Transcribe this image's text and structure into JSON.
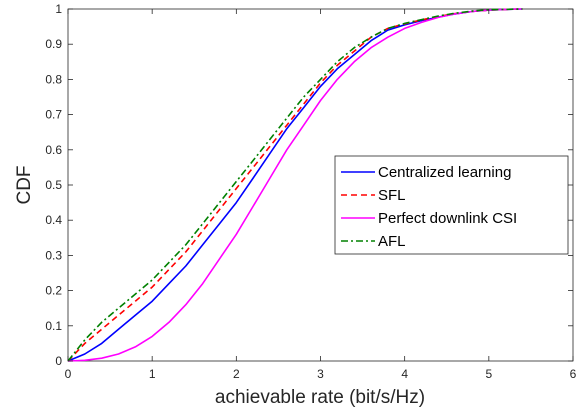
{
  "chart_data": {
    "type": "line",
    "title": "",
    "xlabel": "achievable rate (bit/s/Hz)",
    "ylabel": "CDF",
    "xlim": [
      0,
      6
    ],
    "ylim": [
      0,
      1
    ],
    "xticks": [
      "0",
      "1",
      "2",
      "3",
      "4",
      "5",
      "6"
    ],
    "yticks": [
      "0",
      "0.1",
      "0.2",
      "0.3",
      "0.4",
      "0.5",
      "0.6",
      "0.7",
      "0.8",
      "0.9",
      "1"
    ],
    "grid": false,
    "legend_position": "right",
    "series": [
      {
        "name": "Centralized learning",
        "color": "#0000ff",
        "style": "solid",
        "x": [
          0,
          0.2,
          0.4,
          0.6,
          0.8,
          1.0,
          1.2,
          1.4,
          1.6,
          1.8,
          2.0,
          2.2,
          2.4,
          2.6,
          2.8,
          3.0,
          3.2,
          3.4,
          3.6,
          3.8,
          4.0,
          4.2,
          4.4,
          4.6,
          4.8,
          5.0,
          5.2,
          5.4
        ],
        "y": [
          0,
          0.02,
          0.05,
          0.09,
          0.13,
          0.17,
          0.22,
          0.27,
          0.33,
          0.39,
          0.45,
          0.52,
          0.59,
          0.66,
          0.72,
          0.78,
          0.83,
          0.87,
          0.91,
          0.94,
          0.955,
          0.967,
          0.977,
          0.986,
          0.993,
          0.997,
          0.999,
          1.0
        ]
      },
      {
        "name": "SFL",
        "color": "#ff0000",
        "style": "dashed",
        "x": [
          0,
          0.2,
          0.4,
          0.6,
          0.8,
          1.0,
          1.2,
          1.4,
          1.6,
          1.8,
          2.0,
          2.2,
          2.4,
          2.6,
          2.8,
          3.0,
          3.2,
          3.4,
          3.6,
          3.8,
          4.0,
          4.2,
          4.4,
          4.6,
          4.8,
          5.0,
          5.2,
          5.4
        ],
        "y": [
          0,
          0.05,
          0.09,
          0.13,
          0.17,
          0.21,
          0.26,
          0.31,
          0.37,
          0.43,
          0.49,
          0.55,
          0.61,
          0.67,
          0.73,
          0.79,
          0.84,
          0.88,
          0.92,
          0.945,
          0.958,
          0.969,
          0.979,
          0.987,
          0.993,
          0.997,
          0.999,
          1.0
        ]
      },
      {
        "name": "Perfect downlink CSI",
        "color": "#ff00ff",
        "style": "solid",
        "x": [
          0,
          0.2,
          0.4,
          0.6,
          0.8,
          1.0,
          1.2,
          1.4,
          1.6,
          1.8,
          2.0,
          2.2,
          2.4,
          2.6,
          2.8,
          3.0,
          3.2,
          3.4,
          3.6,
          3.8,
          4.0,
          4.2,
          4.4,
          4.6,
          4.8,
          5.0,
          5.2,
          5.4
        ],
        "y": [
          0,
          0.002,
          0.008,
          0.02,
          0.04,
          0.07,
          0.11,
          0.16,
          0.22,
          0.29,
          0.36,
          0.44,
          0.52,
          0.6,
          0.67,
          0.74,
          0.8,
          0.85,
          0.89,
          0.92,
          0.945,
          0.962,
          0.976,
          0.986,
          0.993,
          0.997,
          0.999,
          1.0
        ]
      },
      {
        "name": "AFL",
        "color": "#008000",
        "style": "dashdot",
        "x": [
          0,
          0.2,
          0.4,
          0.6,
          0.8,
          1.0,
          1.2,
          1.4,
          1.6,
          1.8,
          2.0,
          2.2,
          2.4,
          2.6,
          2.8,
          3.0,
          3.2,
          3.4,
          3.6,
          3.8,
          4.0,
          4.2,
          4.4,
          4.6,
          4.8,
          5.0,
          5.2,
          5.4
        ],
        "y": [
          0,
          0.06,
          0.11,
          0.15,
          0.19,
          0.23,
          0.28,
          0.33,
          0.39,
          0.45,
          0.51,
          0.57,
          0.63,
          0.69,
          0.75,
          0.8,
          0.85,
          0.89,
          0.92,
          0.945,
          0.959,
          0.97,
          0.98,
          0.988,
          0.994,
          0.998,
          0.999,
          1.0
        ]
      }
    ]
  }
}
